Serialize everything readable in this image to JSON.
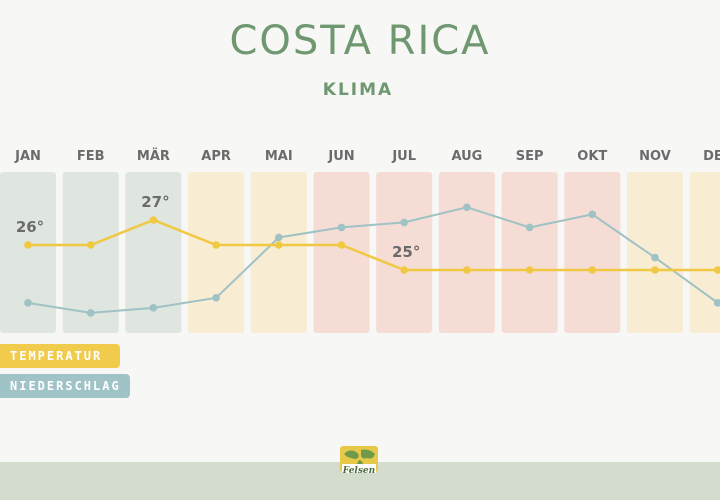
{
  "header": {
    "title": "COSTA RICA",
    "subtitle": "KLIMA"
  },
  "legend": {
    "temperature_label": "TEMPERATUR",
    "precipitation_label": "NIEDERSCHLAG"
  },
  "logo": {
    "text": "Felsen"
  },
  "colors": {
    "temperature": "#f1c842",
    "precipitation": "#9fc2c5",
    "dry_season": "#dfe5df",
    "transition_season": "#f8ecd2",
    "rain_season": "#f5ddd6",
    "title": "#6f9770"
  },
  "chart_data": {
    "type": "line",
    "categories": [
      "JAN",
      "FEB",
      "MÄR",
      "APR",
      "MAI",
      "JUN",
      "JUL",
      "AUG",
      "SEP",
      "OKT",
      "NOV",
      "DEZ"
    ],
    "series": [
      {
        "name": "TEMPERATUR",
        "values": [
          26,
          26,
          27,
          26,
          26,
          26,
          25,
          25,
          25,
          25,
          25,
          25
        ]
      },
      {
        "name": "NIEDERSCHLAG",
        "values": [
          30,
          20,
          25,
          35,
          95,
          105,
          110,
          125,
          105,
          118,
          75,
          30
        ]
      }
    ],
    "data_labels": [
      {
        "series": "TEMPERATUR",
        "category": "JAN",
        "text": "26°"
      },
      {
        "series": "TEMPERATUR",
        "category": "MÄR",
        "text": "27°"
      },
      {
        "series": "TEMPERATUR",
        "category": "JUL",
        "text": "25°"
      }
    ],
    "season_bands": [
      "dry",
      "dry",
      "dry",
      "transition",
      "transition",
      "rain",
      "rain",
      "rain",
      "rain",
      "rain",
      "transition",
      "transition"
    ],
    "temperature_range": [
      24,
      28
    ],
    "precipitation_range": [
      0,
      180
    ],
    "grid": false,
    "legend_position": "bottom-left"
  }
}
